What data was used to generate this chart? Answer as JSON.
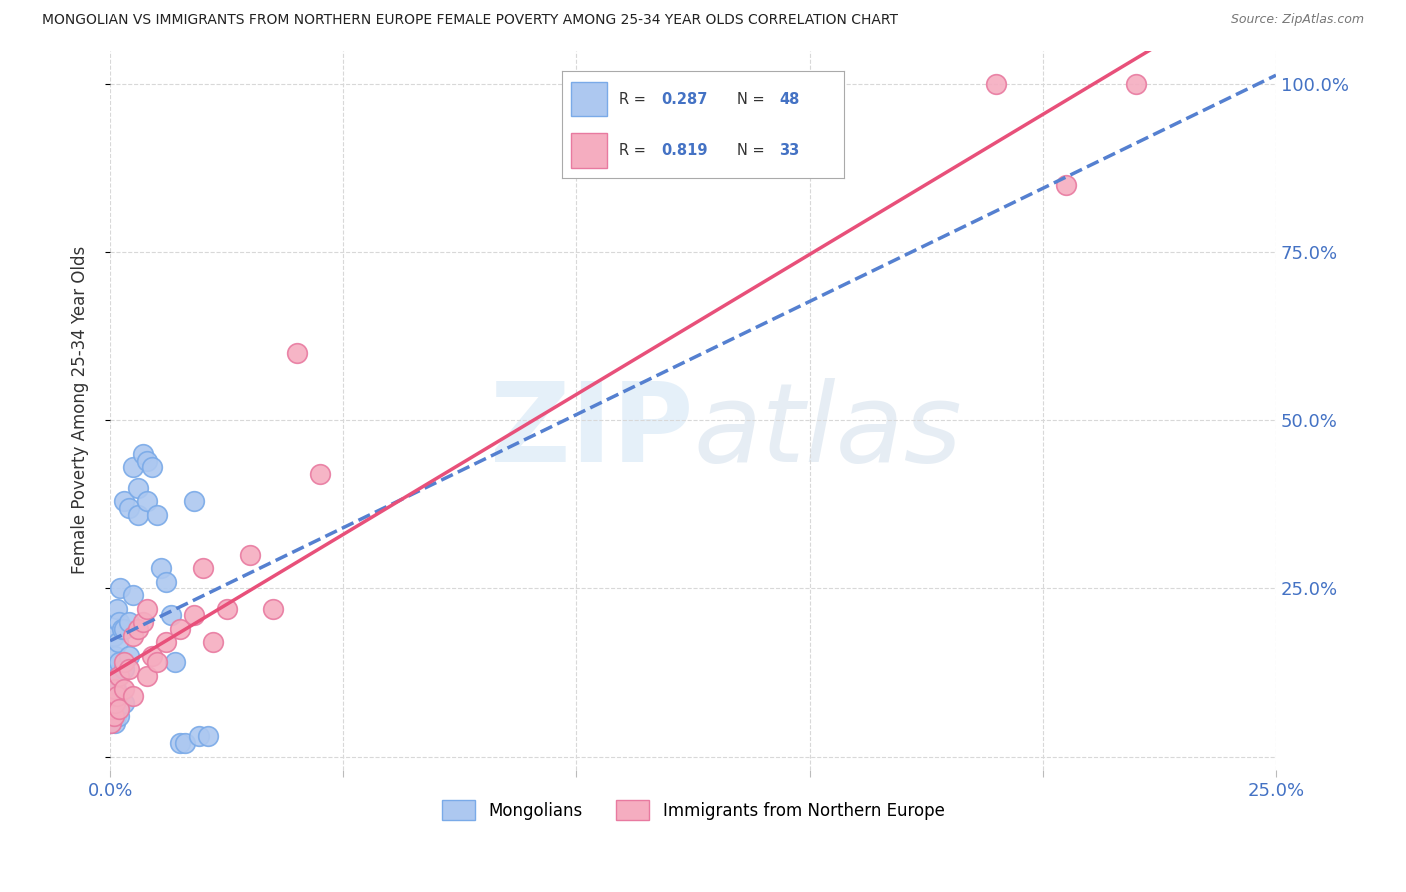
{
  "title": "MONGOLIAN VS IMMIGRANTS FROM NORTHERN EUROPE FEMALE POVERTY AMONG 25-34 YEAR OLDS CORRELATION CHART",
  "source": "Source: ZipAtlas.com",
  "ylabel": "Female Poverty Among 25-34 Year Olds",
  "xlim": [
    0,
    0.25
  ],
  "ylim": [
    -0.02,
    1.05
  ],
  "mongolian_color": "#adc8f0",
  "mongolian_edge": "#7aaae8",
  "immigrant_color": "#f5adc0",
  "immigrant_edge": "#e87aa0",
  "regression_mongolian_color": "#5580d0",
  "regression_immigrant_color": "#e8507a",
  "watermark": "ZIPatlas",
  "background_color": "#ffffff",
  "grid_color": "#d8d8d8",
  "mongolian_x": [
    0.0003,
    0.0005,
    0.0005,
    0.0007,
    0.0008,
    0.0009,
    0.001,
    0.001,
    0.001,
    0.001,
    0.001,
    0.0012,
    0.0013,
    0.0015,
    0.0015,
    0.0016,
    0.0018,
    0.002,
    0.002,
    0.002,
    0.002,
    0.0022,
    0.0025,
    0.003,
    0.003,
    0.003,
    0.003,
    0.004,
    0.004,
    0.004,
    0.005,
    0.005,
    0.006,
    0.006,
    0.007,
    0.008,
    0.008,
    0.009,
    0.01,
    0.011,
    0.012,
    0.013,
    0.014,
    0.015,
    0.016,
    0.018,
    0.019,
    0.021
  ],
  "mongolian_y": [
    0.05,
    0.08,
    0.1,
    0.12,
    0.18,
    0.07,
    0.05,
    0.07,
    0.09,
    0.13,
    0.15,
    0.1,
    0.06,
    0.08,
    0.22,
    0.17,
    0.12,
    0.06,
    0.09,
    0.14,
    0.2,
    0.25,
    0.19,
    0.08,
    0.13,
    0.19,
    0.38,
    0.15,
    0.2,
    0.37,
    0.24,
    0.43,
    0.36,
    0.4,
    0.45,
    0.38,
    0.44,
    0.43,
    0.36,
    0.28,
    0.26,
    0.21,
    0.14,
    0.02,
    0.02,
    0.38,
    0.03,
    0.03
  ],
  "immigrant_x": [
    0.0003,
    0.0005,
    0.0007,
    0.0009,
    0.001,
    0.001,
    0.0015,
    0.002,
    0.002,
    0.003,
    0.003,
    0.004,
    0.005,
    0.005,
    0.006,
    0.007,
    0.008,
    0.008,
    0.009,
    0.01,
    0.012,
    0.015,
    0.018,
    0.02,
    0.022,
    0.025,
    0.03,
    0.035,
    0.04,
    0.045,
    0.19,
    0.205,
    0.22
  ],
  "immigrant_y": [
    0.05,
    0.07,
    0.08,
    0.06,
    0.08,
    0.1,
    0.09,
    0.07,
    0.12,
    0.1,
    0.14,
    0.13,
    0.09,
    0.18,
    0.19,
    0.2,
    0.12,
    0.22,
    0.15,
    0.14,
    0.17,
    0.19,
    0.21,
    0.28,
    0.17,
    0.22,
    0.3,
    0.22,
    0.6,
    0.42,
    1.0,
    0.85,
    1.0
  ]
}
